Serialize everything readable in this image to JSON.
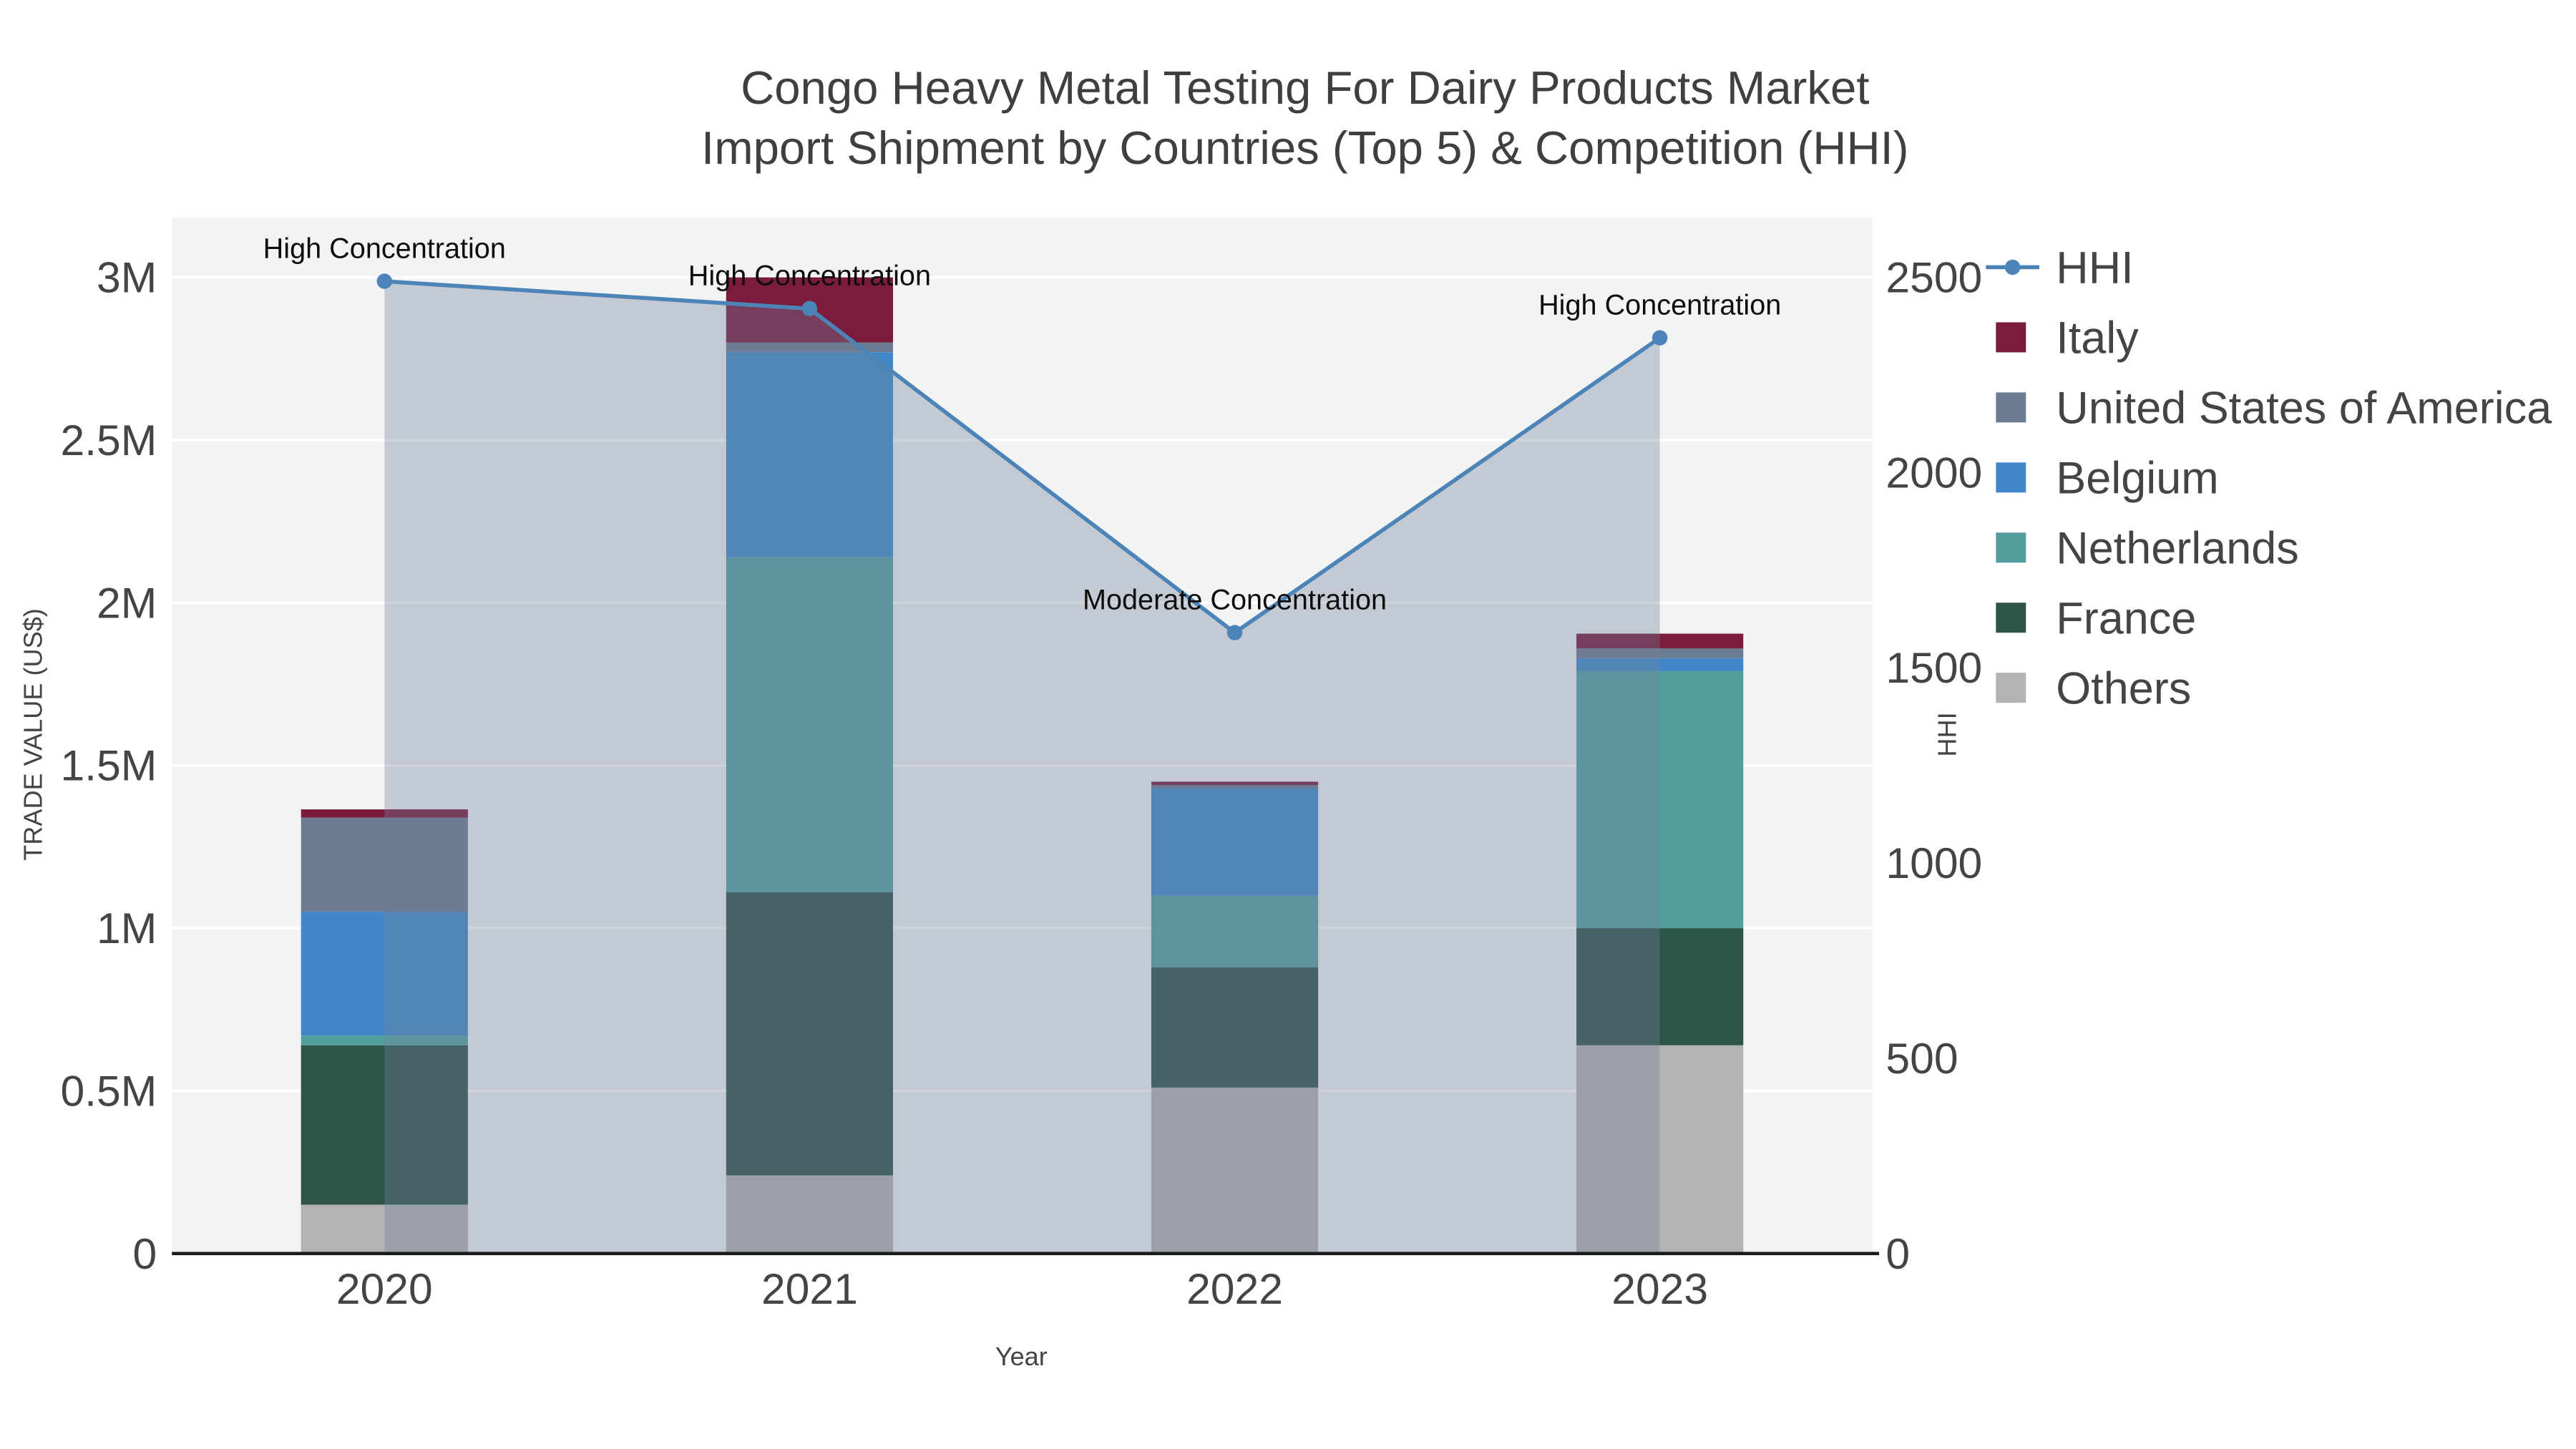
{
  "title": {
    "line1": "Congo Heavy Metal Testing For Dairy Products Market",
    "line2": "Import Shipment by Countries (Top 5) & Competition (HHI)"
  },
  "chart_data": {
    "type": "bar",
    "subtype": "stacked-bar-with-line",
    "categories": [
      "2020",
      "2021",
      "2022",
      "2023"
    ],
    "series": [
      {
        "name": "Others",
        "color": "#b3b3b3",
        "values": [
          150000,
          240000,
          510000,
          640000
        ]
      },
      {
        "name": "France",
        "color": "#2e544a",
        "values": [
          490000,
          870000,
          370000,
          360000
        ]
      },
      {
        "name": "Netherlands",
        "color": "#529e9f",
        "values": [
          30000,
          1030000,
          220000,
          790000
        ]
      },
      {
        "name": "Belgium",
        "color": "#4187c8",
        "values": [
          380000,
          630000,
          330000,
          40000
        ]
      },
      {
        "name": "United States of America",
        "color": "#6c7c93",
        "values": [
          290000,
          30000,
          10000,
          30000
        ]
      },
      {
        "name": "Italy",
        "color": "#7b1c3e",
        "values": [
          25000,
          200000,
          10000,
          45000
        ]
      }
    ],
    "line_series": {
      "name": "HHI",
      "color": "#4d84b8",
      "area_color": "#707e98",
      "area_opacity": 0.35,
      "values": [
        2490,
        2420,
        1590,
        2345
      ]
    },
    "annotations": [
      {
        "category": "2020",
        "text": "High Concentration"
      },
      {
        "category": "2021",
        "text": "High Concentration"
      },
      {
        "category": "2022",
        "text": "Moderate Concentration"
      },
      {
        "category": "2023",
        "text": "High Concentration"
      }
    ],
    "axes": {
      "x": {
        "label": "Year"
      },
      "y_left": {
        "label": "TRADE VALUE (US$)",
        "ticks": [
          "0",
          "0.5M",
          "1M",
          "1.5M",
          "2M",
          "2.5M",
          "3M"
        ],
        "tick_values": [
          0,
          500000,
          1000000,
          1500000,
          2000000,
          2500000,
          3000000
        ],
        "range": [
          0,
          3185000
        ]
      },
      "y_right": {
        "label": "HHI",
        "ticks": [
          "0",
          "500",
          "1000",
          "1500",
          "2000",
          "2500"
        ],
        "tick_values": [
          0,
          500,
          1000,
          1500,
          2000,
          2500
        ],
        "range": [
          0,
          2654
        ]
      }
    },
    "legend": [
      "HHI",
      "Italy",
      "United States of America",
      "Belgium",
      "Netherlands",
      "France",
      "Others"
    ],
    "plot_background": "#f2f3f3",
    "gridline_color": "#ffffff"
  }
}
